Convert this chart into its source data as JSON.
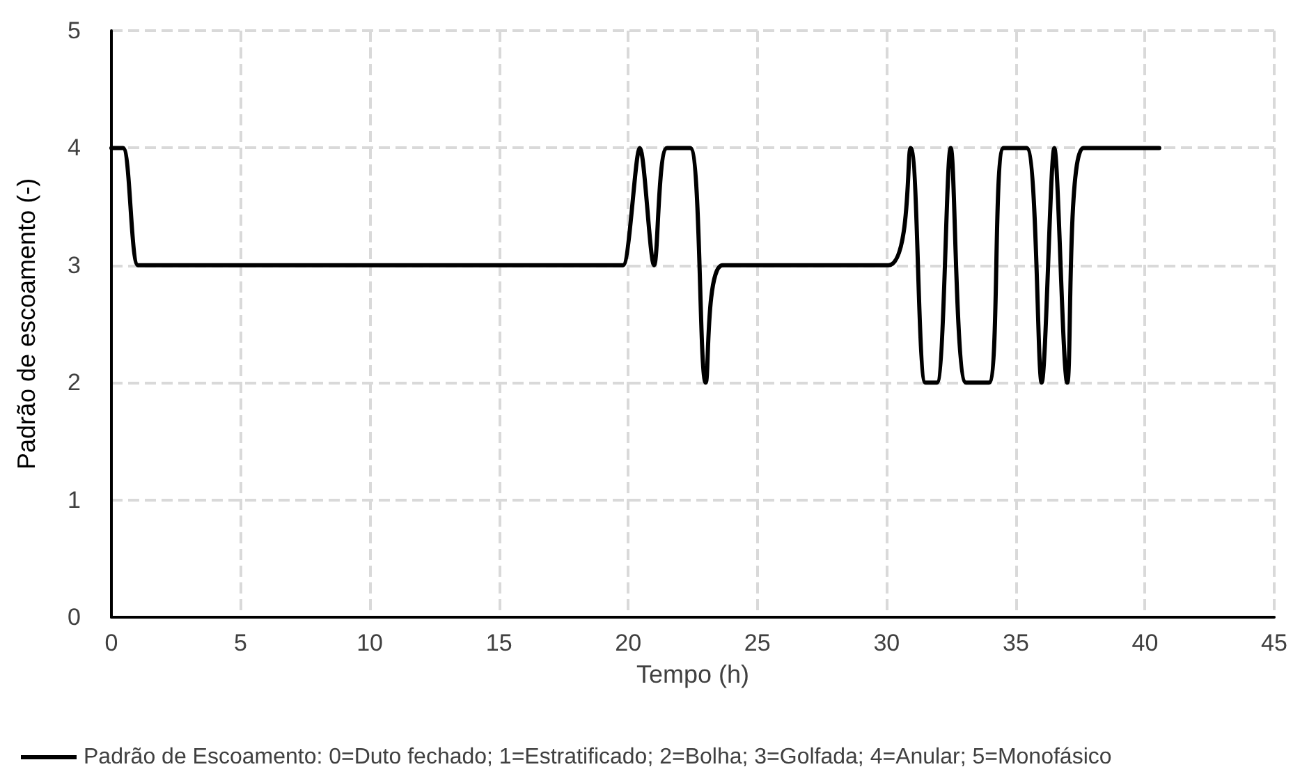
{
  "chart_data": {
    "type": "line",
    "xlabel": "Tempo (h)",
    "ylabel": "Padrão de escoamento (-)",
    "xlim": [
      0,
      45
    ],
    "xticks": [
      0,
      5,
      10,
      15,
      20,
      25,
      30,
      35,
      40,
      45
    ],
    "ylim": [
      0,
      5
    ],
    "yticks": [
      0,
      1,
      2,
      3,
      4,
      5
    ],
    "grid": true,
    "legend": "bottom",
    "marker": "none",
    "line_style": "solid",
    "series": [
      {
        "name": "Padrão de Escoamento: 0=Duto fechado; 1=Estratificado; 2=Bolha; 3=Golfada; 4=Anular; 5=Monofásico",
        "color": "#000000",
        "x": [
          0,
          0.45,
          1.03,
          1.5,
          19.55,
          19.8,
          20.45,
          21.0,
          21.5,
          22.4,
          23.0,
          23.65,
          30.07,
          30.93,
          31.5,
          31.95,
          32.48,
          33.07,
          33.96,
          34.53,
          35.42,
          36.0,
          36.49,
          36.99,
          37.61,
          40.55
        ],
        "values": [
          4,
          4,
          3,
          3,
          3,
          3,
          4,
          3,
          4,
          4,
          2,
          3,
          3,
          4,
          2,
          2,
          4,
          2,
          2,
          4,
          4,
          2,
          4,
          2,
          4,
          4
        ]
      }
    ]
  }
}
